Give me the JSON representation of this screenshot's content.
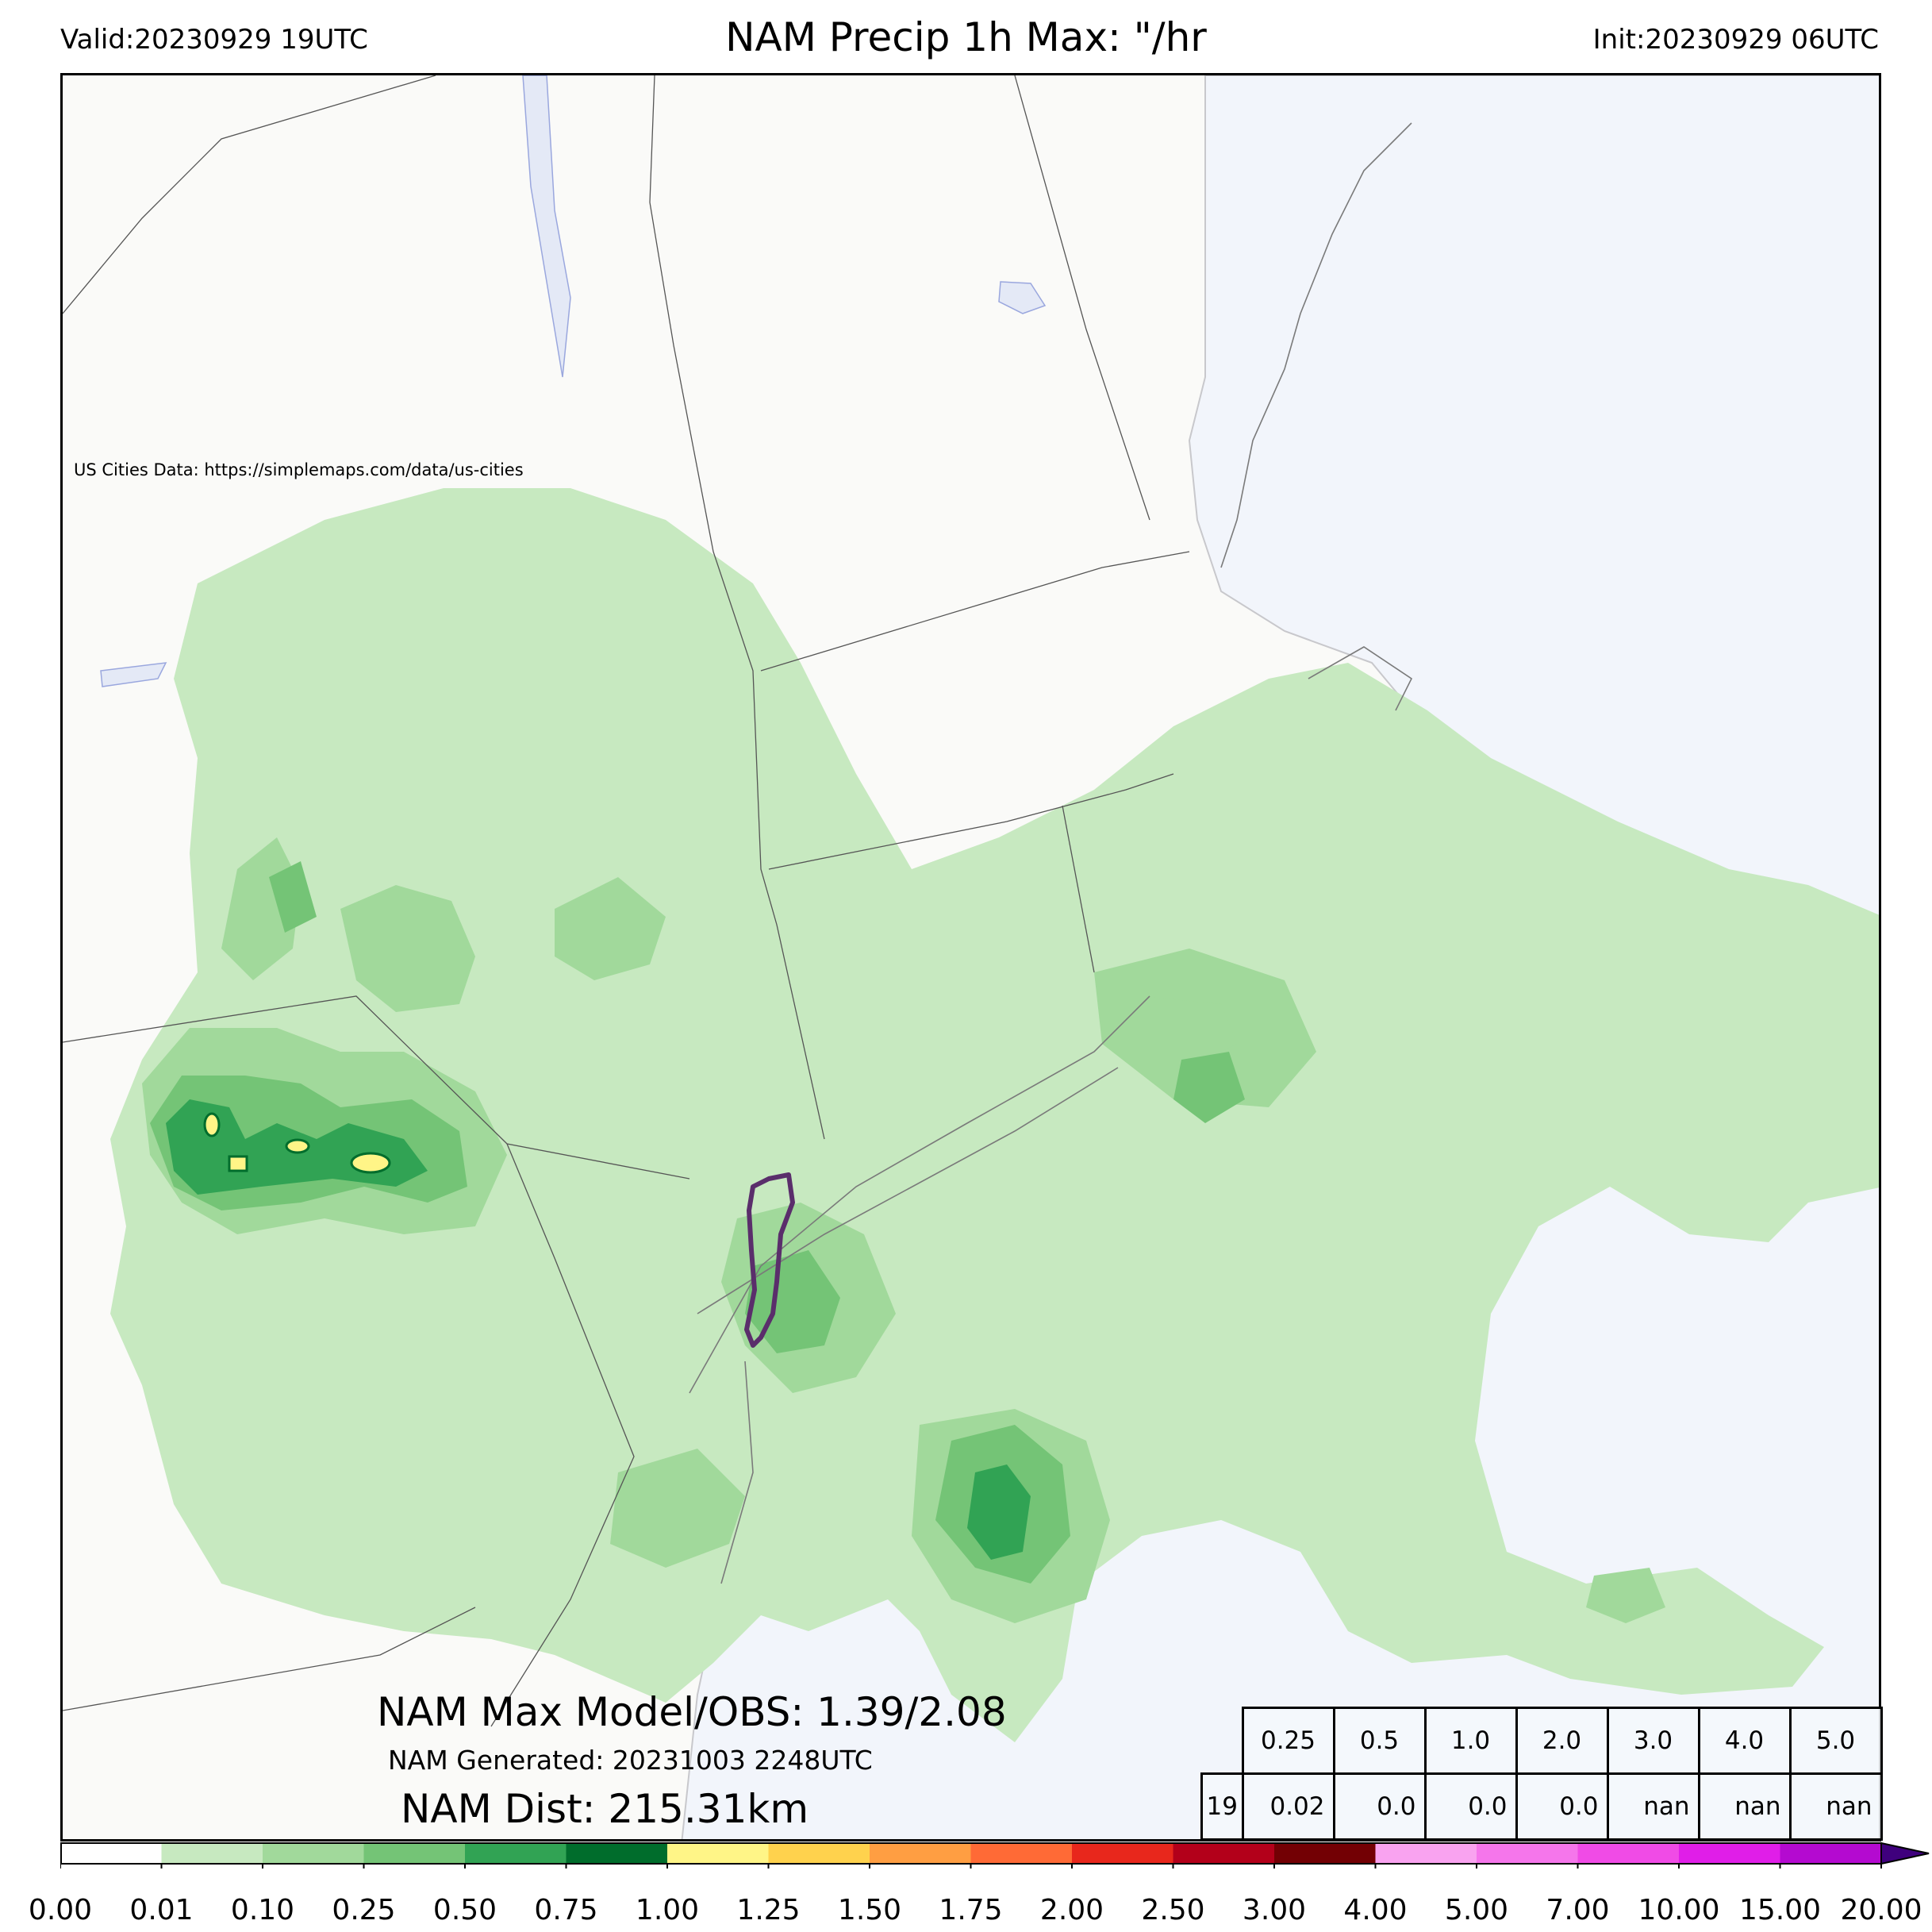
{
  "header": {
    "valid": "Valid:20230929 19UTC",
    "title": "NAM Precip 1h Max: \"/hr",
    "init": "Init:20230929 06UTC"
  },
  "credit": "US Cities Data: https://simplemaps.com/data/us-cities",
  "stats": {
    "max_line": "NAM Max Model/OBS: 1.39/2.08",
    "generated_line": "NAM Generated: 20231003 2248UTC",
    "dist_line": "NAM Dist: 215.31km"
  },
  "threshold_table": {
    "headers": [
      "0.25",
      "0.5",
      "1.0",
      "2.0",
      "3.0",
      "4.0",
      "5.0"
    ],
    "row_label": "19",
    "values": [
      "0.02",
      "0.0",
      "0.0",
      "0.0",
      "nan",
      "nan",
      "nan"
    ]
  },
  "colorbar": {
    "ticks": [
      "0.00",
      "0.01",
      "0.10",
      "0.25",
      "0.50",
      "0.75",
      "1.00",
      "1.25",
      "1.50",
      "1.75",
      "2.00",
      "2.50",
      "3.00",
      "4.00",
      "5.00",
      "7.00",
      "10.00",
      "15.00",
      "20.00"
    ],
    "colors": [
      "#ffffff",
      "#c7e9c0",
      "#a1d99b",
      "#74c476",
      "#31a354",
      "#006d2c",
      "#fff587",
      "#ffd24d",
      "#ff9e42",
      "#ff6a36",
      "#e8271c",
      "#b3001a",
      "#730004",
      "#f9a3f0",
      "#f576eb",
      "#f04be6",
      "#e01ee8",
      "#b40ad0",
      "#7d00a8"
    ],
    "extend_color": "#3f007d"
  },
  "colors": {
    "ocean": "#f2f5fb",
    "land": "#fafaf8",
    "lake": "#e4e9f6",
    "precip_light": "#c7e9c0",
    "precip_med": "#a1d99b",
    "precip_heavy": "#74c476",
    "obs_contour": "#5a2e6b"
  }
}
